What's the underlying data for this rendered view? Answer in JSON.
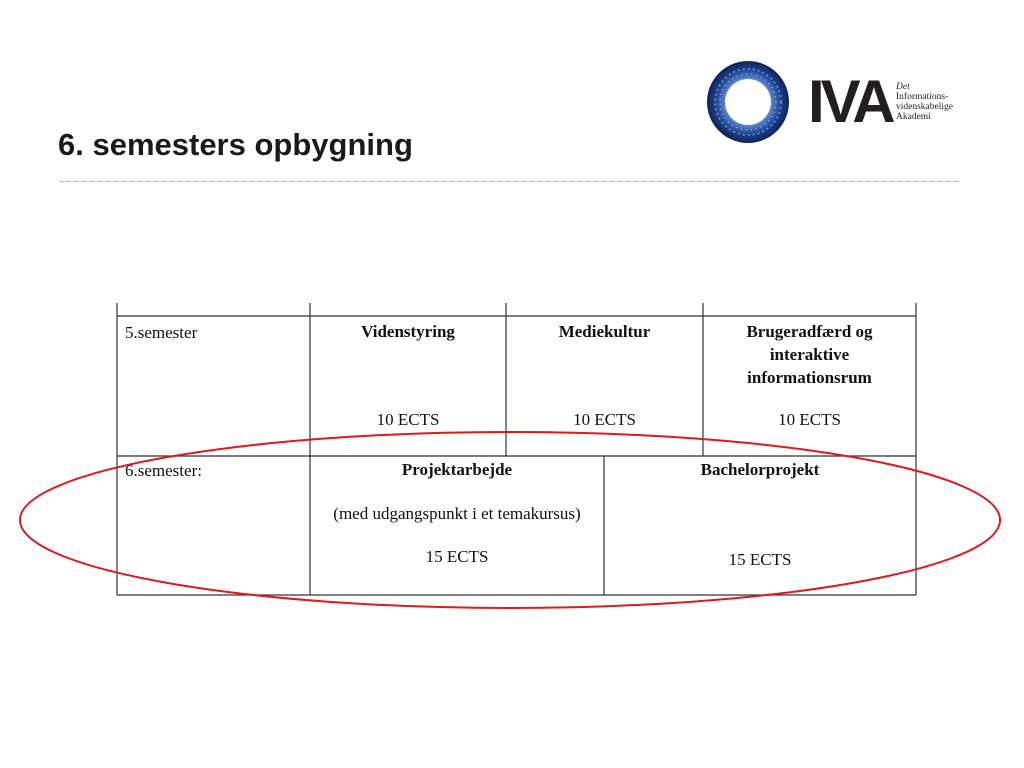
{
  "slide": {
    "title": "6. semesters opbygning"
  },
  "logo": {
    "letters": "IVA",
    "subtitle_lines": [
      "Det",
      "Informations-",
      "videnskabelige",
      "Akademi"
    ]
  },
  "table": {
    "row5": {
      "label": "5.semester",
      "courses": [
        {
          "name": "Videnstyring",
          "ects": "10 ECTS"
        },
        {
          "name": "Mediekultur",
          "ects": "10 ECTS"
        },
        {
          "name_lines": [
            "Brugeradfærd og",
            "interaktive",
            "informationsrum"
          ],
          "ects": "10 ECTS"
        }
      ]
    },
    "row6": {
      "label": "6.semester:",
      "courses": [
        {
          "name": "Projektarbejde",
          "note": "(med udgangspunkt i et temakursus)",
          "ects": "15 ECTS"
        },
        {
          "name": "Bachelorprojekt",
          "ects": "15 ECTS"
        }
      ]
    }
  },
  "colors": {
    "highlight_oval": "#e0191b",
    "table_border": "#333333",
    "logo_blue": "#1d3f8f"
  }
}
